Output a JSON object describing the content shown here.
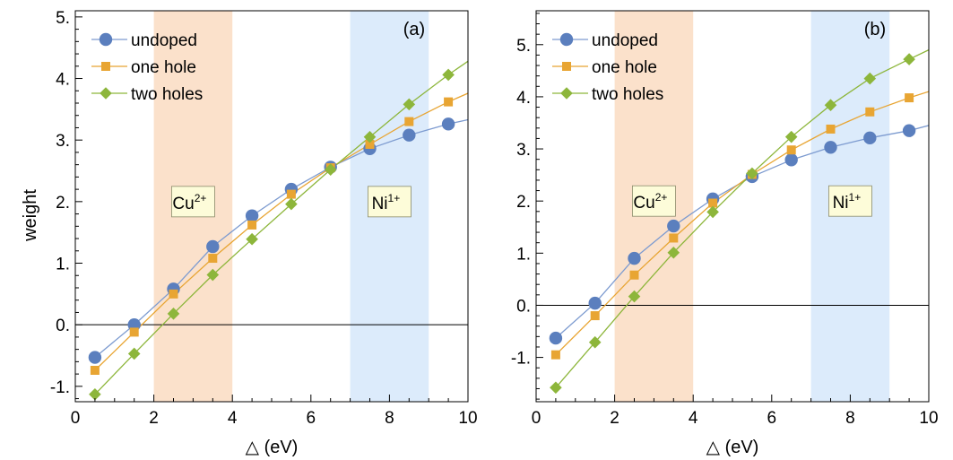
{
  "figure": {
    "ylabel": "weight",
    "xlabel": "△ (eV)"
  },
  "chart_data": [
    {
      "type": "line",
      "panel_label": "(a)",
      "xlabel": "△ (eV)",
      "ylabel": "weight",
      "xlim": [
        0,
        10
      ],
      "ylim": [
        -1.25,
        5.1
      ],
      "xticks": [
        0,
        2,
        4,
        6,
        8,
        10
      ],
      "xtick_labels": [
        "0",
        "2",
        "4",
        "6",
        "8",
        "10"
      ],
      "yticks": [
        -1,
        0,
        1,
        2,
        3,
        4,
        5
      ],
      "ytick_labels": [
        "-1.",
        "0.",
        "1.",
        "2.",
        "3.",
        "4.",
        "5."
      ],
      "zero_line": 0,
      "legend_position": "top-left",
      "bands": [
        {
          "label": "Cu",
          "sup": "2+",
          "x_range": [
            2,
            4
          ],
          "color": "#fbe1cb",
          "label_at": [
            3,
            2
          ]
        },
        {
          "label": "Ni",
          "sup": "1+",
          "x_range": [
            7,
            9
          ],
          "color": "#dcebfb",
          "label_at": [
            8,
            2
          ]
        }
      ],
      "x": [
        0.5,
        1.5,
        2.5,
        3.5,
        4.5,
        5.5,
        6.5,
        7.5,
        8.5,
        9.5
      ],
      "series": [
        {
          "name": "undoped",
          "marker": "circle",
          "color": "#5b7fbe",
          "line_color": "#7d9bd0",
          "values": [
            -0.53,
            0.0,
            0.58,
            1.27,
            1.77,
            2.2,
            2.56,
            2.86,
            3.08,
            3.26
          ],
          "line_extend": [
            [
              0.5,
              -0.53
            ],
            [
              10,
              3.33
            ]
          ]
        },
        {
          "name": "one hole",
          "marker": "square",
          "color": "#e8a533",
          "line_color": "#e8a533",
          "values": [
            -0.74,
            -0.12,
            0.5,
            1.08,
            1.62,
            2.12,
            2.55,
            2.93,
            3.3,
            3.62
          ],
          "line_extend": [
            [
              0.5,
              -0.74
            ],
            [
              10,
              3.76
            ]
          ]
        },
        {
          "name": "two holes",
          "marker": "diamond",
          "color": "#8db63b",
          "line_color": "#8db63b",
          "values": [
            -1.13,
            -0.47,
            0.18,
            0.81,
            1.39,
            1.96,
            2.52,
            3.05,
            3.58,
            4.06
          ],
          "line_extend": [
            [
              0.5,
              -1.13
            ],
            [
              10,
              4.28
            ]
          ]
        }
      ]
    },
    {
      "type": "line",
      "panel_label": "(b)",
      "xlabel": "△ (eV)",
      "ylabel": "",
      "xlim": [
        0,
        10
      ],
      "ylim": [
        -1.85,
        5.65
      ],
      "xticks": [
        0,
        2,
        4,
        6,
        8,
        10
      ],
      "xtick_labels": [
        "0",
        "2",
        "4",
        "6",
        "8",
        "10"
      ],
      "yticks": [
        -1,
        0,
        1,
        2,
        3,
        4,
        5
      ],
      "ytick_labels": [
        "-1.",
        "0.",
        "1.",
        "2.",
        "3.",
        "4.",
        "5."
      ],
      "zero_line": 0,
      "legend_position": "top-left",
      "bands": [
        {
          "label": "Cu",
          "sup": "2+",
          "x_range": [
            2,
            4
          ],
          "color": "#fbe1cb",
          "label_at": [
            3,
            2
          ]
        },
        {
          "label": "Ni",
          "sup": "1+",
          "x_range": [
            7,
            9
          ],
          "color": "#dcebfb",
          "label_at": [
            8,
            2
          ]
        }
      ],
      "x": [
        0.5,
        1.5,
        2.5,
        3.5,
        4.5,
        5.5,
        6.5,
        7.5,
        8.5,
        9.5
      ],
      "series": [
        {
          "name": "undoped",
          "marker": "circle",
          "color": "#5b7fbe",
          "line_color": "#7d9bd0",
          "values": [
            -0.63,
            0.04,
            0.9,
            1.52,
            2.04,
            2.47,
            2.79,
            3.03,
            3.21,
            3.35
          ],
          "line_extend": [
            [
              0.5,
              -0.63
            ],
            [
              10,
              3.45
            ]
          ]
        },
        {
          "name": "one hole",
          "marker": "square",
          "color": "#e8a533",
          "line_color": "#e8a533",
          "values": [
            -0.95,
            -0.2,
            0.58,
            1.29,
            1.96,
            2.51,
            2.98,
            3.38,
            3.71,
            3.98
          ],
          "line_extend": [
            [
              0.5,
              -0.95
            ],
            [
              10,
              4.1
            ]
          ]
        },
        {
          "name": "two holes",
          "marker": "diamond",
          "color": "#8db63b",
          "line_color": "#8db63b",
          "values": [
            -1.58,
            -0.71,
            0.17,
            1.01,
            1.79,
            2.53,
            3.23,
            3.84,
            4.35,
            4.72
          ],
          "line_extend": [
            [
              0.5,
              -1.58
            ],
            [
              10,
              4.9
            ]
          ]
        }
      ]
    }
  ]
}
